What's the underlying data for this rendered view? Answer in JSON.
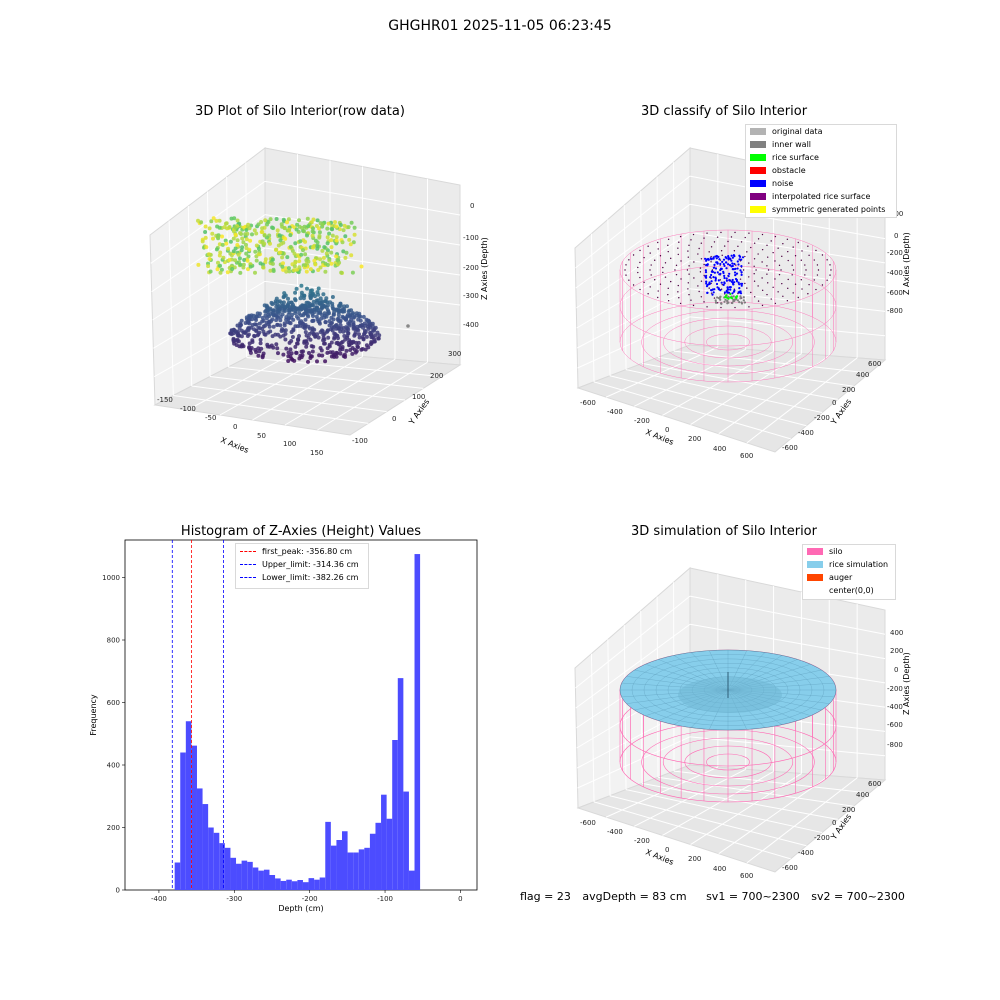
{
  "suptitle": "GHGHR01 2025-11-05 06:23:45",
  "panel_raw": {
    "title": "3D Plot of Silo Interior(row data)",
    "xlabel": "X Axies",
    "ylabel": "Y Axies",
    "zlabel": "Z Axies (Depth)",
    "xticks": [
      "-150",
      "-100",
      "-50",
      "0",
      "50",
      "100",
      "150"
    ],
    "yticks": [
      "-100",
      "0",
      "100",
      "200",
      "300"
    ],
    "zticks": [
      "0",
      "-100",
      "-200",
      "-300",
      "-400"
    ]
  },
  "panel_classify": {
    "title": "3D classify of Silo Interior",
    "xlabel": "X Axies",
    "ylabel": "Y Axies",
    "zlabel": "Z Axies (Depth)",
    "xticks": [
      "-600",
      "-400",
      "-200",
      "0",
      "200",
      "400",
      "600"
    ],
    "yticks": [
      "-600",
      "-400",
      "-200",
      "0",
      "200",
      "400",
      "600"
    ],
    "zticks": [
      "200",
      "0",
      "-200",
      "-400",
      "-600",
      "-800"
    ],
    "legend": [
      {
        "label": "original data",
        "color": "#b3b3b3"
      },
      {
        "label": "inner wall",
        "color": "#808080"
      },
      {
        "label": "rice surface",
        "color": "#00ff00"
      },
      {
        "label": "obstacle",
        "color": "#ff0000"
      },
      {
        "label": "noise",
        "color": "#0000ff"
      },
      {
        "label": "interpolated rice surface",
        "color": "#800080"
      },
      {
        "label": "symmetric generated points",
        "color": "#ffff00"
      }
    ]
  },
  "panel_hist": {
    "title": "Histogram of Z-Axies (Height) Values",
    "xlabel": "Depth (cm)",
    "ylabel": "Frequency",
    "legend": [
      {
        "label": "first_peak: -356.80 cm",
        "color": "#ff0000"
      },
      {
        "label": "Upper_limit: -314.36 cm",
        "color": "#0000ff"
      },
      {
        "label": "Lower_limit: -382.26 cm",
        "color": "#0000ff"
      }
    ]
  },
  "panel_sim": {
    "title": "3D simulation of Silo Interior",
    "xlabel": "X Axies",
    "ylabel": "Y Axies",
    "zlabel": "Z Axies (Depth)",
    "xticks": [
      "-600",
      "-400",
      "-200",
      "0",
      "200",
      "400",
      "600"
    ],
    "yticks": [
      "-600",
      "-400",
      "-200",
      "0",
      "200",
      "400",
      "600"
    ],
    "zticks": [
      "400",
      "200",
      "0",
      "-200",
      "-400",
      "-600",
      "-800"
    ],
    "legend": [
      {
        "label": "silo",
        "color": "#ff69b4"
      },
      {
        "label": "rice simulation",
        "color": "#87ceeb"
      },
      {
        "label": "auger",
        "color": "#ff4500"
      },
      {
        "label": "center(0,0)",
        "color": "#ffffff"
      }
    ]
  },
  "footer": {
    "flag": "flag = 23",
    "avg": "avgDepth = 83 cm",
    "sv1": "sv1 = 700~2300",
    "sv2": "sv2 = 700~2300"
  },
  "chart_data": [
    {
      "type": "bar",
      "title": "Histogram of Z-Axies (Height) Values",
      "xlabel": "Depth (cm)",
      "ylabel": "Frequency",
      "xlim": [
        -445,
        22
      ],
      "ylim": [
        0,
        1120
      ],
      "xticks": [
        -400,
        -300,
        -200,
        -100,
        0
      ],
      "yticks": [
        0,
        200,
        400,
        600,
        800,
        1000
      ],
      "bin_width": 7.4,
      "bin_starts": [
        -386.5,
        -379.1,
        -371.7,
        -364.3,
        -356.9,
        -349.5,
        -342.1,
        -334.7,
        -327.3,
        -319.9,
        -312.5,
        -305.1,
        -297.7,
        -290.3,
        -282.9,
        -275.5,
        -268.1,
        -260.7,
        -253.3,
        -245.9,
        -238.5,
        -231.1,
        -223.7,
        -216.3,
        -208.9,
        -201.5,
        -194.1,
        -186.7,
        -179.3,
        -171.9,
        -164.5,
        -157.1,
        -149.7,
        -142.3,
        -134.9,
        -127.5,
        -120.1,
        -112.7,
        -105.3,
        -97.9,
        -90.5,
        -83.1,
        -75.7,
        -68.3,
        -60.9,
        -53.5,
        -46.1,
        -38.7,
        -31.3,
        -23.9,
        -16.5,
        -9.1,
        -1.7
      ],
      "values": [
        0,
        88,
        440,
        540,
        462,
        325,
        275,
        200,
        183,
        150,
        135,
        103,
        84,
        94,
        90,
        72,
        62,
        65,
        48,
        37,
        29,
        33,
        28,
        32,
        25,
        38,
        33,
        40,
        218,
        142,
        160,
        188,
        120,
        120,
        130,
        135,
        180,
        215,
        305,
        228,
        480,
        678,
        315,
        62,
        1075,
        0,
        0,
        0,
        0,
        0,
        0,
        0,
        0
      ],
      "vlines": [
        {
          "x": -356.8,
          "color": "#ff0000",
          "label": "first_peak: -356.80 cm"
        },
        {
          "x": -314.36,
          "color": "#0000ff",
          "label": "Upper_limit: -314.36 cm"
        },
        {
          "x": -382.26,
          "color": "#0000ff",
          "label": "Lower_limit: -382.26 cm"
        }
      ],
      "bar_color": "#4c4cff",
      "grid": false,
      "legend_position": "top-center"
    }
  ]
}
